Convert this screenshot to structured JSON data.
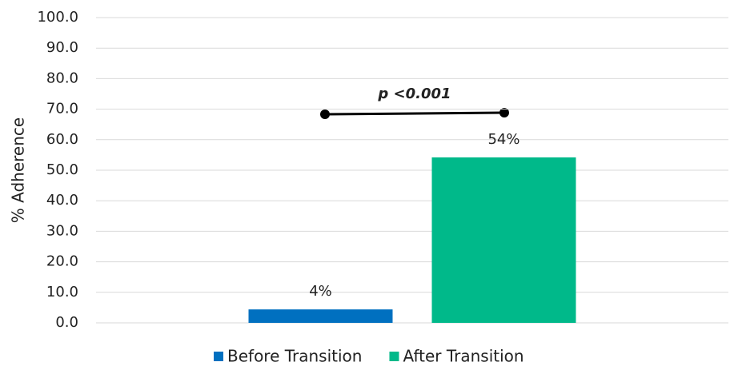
{
  "chart_data": {
    "type": "bar",
    "y_label": "% Adherence",
    "categories": [
      null
    ],
    "series": [
      {
        "name": "Before Transition",
        "color": "#0070c0",
        "values": [
          4.4
        ],
        "value_labels": [
          "4%"
        ]
      },
      {
        "name": "After Transition",
        "color": "#00b98a",
        "values": [
          54.2
        ],
        "value_labels": [
          "54%"
        ]
      }
    ],
    "ylim": [
      0,
      100
    ],
    "yticks": [
      {
        "value": 0,
        "label": "0.0"
      },
      {
        "value": 10,
        "label": "10.0"
      },
      {
        "value": 20,
        "label": "20.0"
      },
      {
        "value": 30,
        "label": "30.0"
      },
      {
        "value": 40,
        "label": "40.0"
      },
      {
        "value": 50,
        "label": "50.0"
      },
      {
        "value": 60,
        "label": "60.0"
      },
      {
        "value": 70,
        "label": "70.0"
      },
      {
        "value": 80,
        "label": "80.0"
      },
      {
        "value": 90,
        "label": "90.0"
      },
      {
        "value": 100,
        "label": "100.0"
      }
    ],
    "grid": true,
    "legend": "bottom",
    "annotation": "p <0.001"
  }
}
